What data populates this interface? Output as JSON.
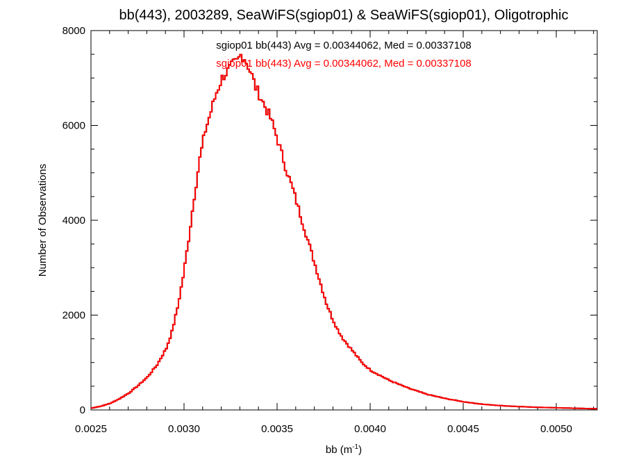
{
  "chart_data": {
    "type": "histogram",
    "title": "bb(443), 2003289, SeaWiFS(sgiop01) & SeaWiFS(sgiop01), Oligotrophic",
    "xlabel": "bb (m",
    "xlabel_sup": "-1",
    "xlabel_close": ")",
    "ylabel": "Number of Observations",
    "xlim": [
      0.0025,
      0.00522
    ],
    "ylim": [
      0,
      8000
    ],
    "x_tick_labels": [
      "0.0025",
      "0.0030",
      "0.0035",
      "0.0040",
      "0.0045",
      "0.0050"
    ],
    "y_tick_labels": [
      "0",
      "2000",
      "4000",
      "6000",
      "8000"
    ],
    "grid": false,
    "bin_width": 1e-05,
    "series": [
      {
        "name": "sgiop01 bb(443) Avg = 0.00344062, Med = 0.00337108",
        "color": "#000000",
        "bins": [
          [
            0.0025,
            40
          ],
          [
            0.00255,
            80
          ],
          [
            0.0026,
            140
          ],
          [
            0.00265,
            240
          ],
          [
            0.0027,
            360
          ],
          [
            0.00275,
            520
          ],
          [
            0.0028,
            700
          ],
          [
            0.00285,
            950
          ],
          [
            0.0029,
            1300
          ],
          [
            0.00293,
            1650
          ],
          [
            0.00296,
            2150
          ],
          [
            0.00299,
            2800
          ],
          [
            0.00302,
            3600
          ],
          [
            0.00305,
            4500
          ],
          [
            0.00308,
            5300
          ],
          [
            0.00311,
            5900
          ],
          [
            0.00314,
            6300
          ],
          [
            0.00317,
            6700
          ],
          [
            0.0032,
            7000
          ],
          [
            0.00323,
            7150
          ],
          [
            0.00326,
            7300
          ],
          [
            0.00328,
            7350
          ],
          [
            0.0033,
            7480
          ],
          [
            0.00332,
            7420
          ],
          [
            0.00334,
            7250
          ],
          [
            0.00336,
            7050
          ],
          [
            0.00338,
            6800
          ],
          [
            0.0034,
            6650
          ],
          [
            0.00343,
            6400
          ],
          [
            0.00346,
            6150
          ],
          [
            0.00349,
            5800
          ],
          [
            0.00352,
            5400
          ],
          [
            0.00355,
            5000
          ],
          [
            0.00358,
            4650
          ],
          [
            0.00361,
            4250
          ],
          [
            0.00364,
            3850
          ],
          [
            0.00367,
            3450
          ],
          [
            0.0037,
            3050
          ],
          [
            0.00373,
            2650
          ],
          [
            0.00376,
            2250
          ],
          [
            0.00379,
            1950
          ],
          [
            0.00382,
            1700
          ],
          [
            0.00385,
            1500
          ],
          [
            0.0039,
            1250
          ],
          [
            0.00395,
            1000
          ],
          [
            0.004,
            830
          ],
          [
            0.0041,
            620
          ],
          [
            0.0042,
            460
          ],
          [
            0.0043,
            330
          ],
          [
            0.0044,
            240
          ],
          [
            0.0045,
            170
          ],
          [
            0.0046,
            120
          ],
          [
            0.0047,
            90
          ],
          [
            0.0048,
            70
          ],
          [
            0.0049,
            55
          ],
          [
            0.005,
            45
          ],
          [
            0.0051,
            35
          ],
          [
            0.0052,
            25
          ]
        ]
      },
      {
        "name": "sgiop01 bb(443) Avg = 0.00344062, Med = 0.00337108",
        "color": "#ff0000",
        "bins": "same as first series"
      }
    ]
  }
}
